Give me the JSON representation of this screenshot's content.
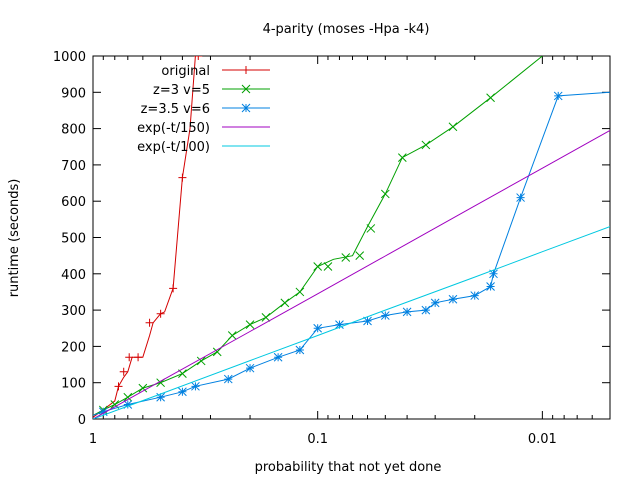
{
  "chart_data": {
    "type": "line",
    "title": "4-parity (moses -Hpa -k4)",
    "xlabel": "probability that not yet done",
    "ylabel": "runtime (seconds)",
    "x_scale": "log",
    "x_reversed": true,
    "xlim": [
      1,
      0.005
    ],
    "ylim": [
      0,
      1000
    ],
    "x_ticks": [
      {
        "value": 1,
        "label": "1"
      },
      {
        "value": 0.1,
        "label": "0.1"
      },
      {
        "value": 0.01,
        "label": "0.01"
      }
    ],
    "y_ticks": [
      0,
      100,
      200,
      300,
      400,
      500,
      600,
      700,
      800,
      900,
      1000
    ],
    "grid": false,
    "legend_position": "top-left",
    "series": [
      {
        "name": "original",
        "color": "#d40000",
        "marker": "plus",
        "points": [
          [
            1,
            5
          ],
          [
            0.95,
            15
          ],
          [
            0.88,
            30
          ],
          [
            0.8,
            50
          ],
          [
            0.77,
            90
          ],
          [
            0.73,
            115
          ],
          [
            0.7,
            130
          ],
          [
            0.67,
            170
          ],
          [
            0.6,
            170
          ],
          [
            0.56,
            230
          ],
          [
            0.54,
            265
          ],
          [
            0.5,
            290
          ],
          [
            0.48,
            295
          ],
          [
            0.44,
            360
          ],
          [
            0.4,
            665
          ],
          [
            0.37,
            800
          ],
          [
            0.35,
            1000
          ]
        ],
        "marked_points": [
          [
            0.77,
            90
          ],
          [
            0.73,
            130
          ],
          [
            0.69,
            170
          ],
          [
            0.63,
            170
          ],
          [
            0.56,
            265
          ],
          [
            0.5,
            290
          ],
          [
            0.44,
            360
          ],
          [
            0.4,
            665
          ],
          [
            0.34,
            1000
          ]
        ]
      },
      {
        "name": "z=3 v=5",
        "color": "#00a000",
        "marker": "x",
        "points": [
          [
            1,
            10
          ],
          [
            0.9,
            25
          ],
          [
            0.8,
            40
          ],
          [
            0.7,
            60
          ],
          [
            0.6,
            85
          ],
          [
            0.5,
            100
          ],
          [
            0.4,
            125
          ],
          [
            0.33,
            160
          ],
          [
            0.28,
            185
          ],
          [
            0.24,
            230
          ],
          [
            0.2,
            260
          ],
          [
            0.17,
            280
          ],
          [
            0.14,
            320
          ],
          [
            0.12,
            350
          ],
          [
            0.1,
            420
          ],
          [
            0.085,
            440
          ],
          [
            0.07,
            450
          ],
          [
            0.06,
            530
          ],
          [
            0.05,
            620
          ],
          [
            0.042,
            720
          ],
          [
            0.033,
            755
          ],
          [
            0.025,
            805
          ],
          [
            0.017,
            885
          ],
          [
            0.01,
            1000
          ]
        ],
        "marked_points": [
          [
            0.9,
            25
          ],
          [
            0.8,
            40
          ],
          [
            0.7,
            60
          ],
          [
            0.6,
            85
          ],
          [
            0.5,
            100
          ],
          [
            0.4,
            125
          ],
          [
            0.33,
            160
          ],
          [
            0.28,
            185
          ],
          [
            0.24,
            230
          ],
          [
            0.2,
            260
          ],
          [
            0.17,
            280
          ],
          [
            0.14,
            320
          ],
          [
            0.12,
            350
          ],
          [
            0.1,
            420
          ],
          [
            0.09,
            420
          ],
          [
            0.075,
            445
          ],
          [
            0.065,
            450
          ],
          [
            0.058,
            525
          ],
          [
            0.05,
            620
          ],
          [
            0.042,
            720
          ],
          [
            0.033,
            755
          ],
          [
            0.025,
            805
          ],
          [
            0.017,
            885
          ]
        ]
      },
      {
        "name": "z=3.5 v=6",
        "color": "#0080e0",
        "marker": "star",
        "points": [
          [
            1,
            10
          ],
          [
            0.9,
            20
          ],
          [
            0.7,
            40
          ],
          [
            0.5,
            60
          ],
          [
            0.4,
            75
          ],
          [
            0.35,
            90
          ],
          [
            0.25,
            110
          ],
          [
            0.2,
            140
          ],
          [
            0.15,
            170
          ],
          [
            0.12,
            190
          ],
          [
            0.1,
            250
          ],
          [
            0.08,
            260
          ],
          [
            0.06,
            270
          ],
          [
            0.05,
            285
          ],
          [
            0.04,
            295
          ],
          [
            0.033,
            300
          ],
          [
            0.03,
            320
          ],
          [
            0.025,
            330
          ],
          [
            0.02,
            340
          ],
          [
            0.017,
            365
          ],
          [
            0.0165,
            400
          ],
          [
            0.0125,
            610
          ],
          [
            0.0085,
            890
          ],
          [
            0.005,
            900
          ]
        ],
        "marked_points": [
          [
            0.9,
            20
          ],
          [
            0.7,
            40
          ],
          [
            0.5,
            60
          ],
          [
            0.4,
            75
          ],
          [
            0.35,
            90
          ],
          [
            0.25,
            110
          ],
          [
            0.2,
            140
          ],
          [
            0.15,
            170
          ],
          [
            0.12,
            190
          ],
          [
            0.1,
            250
          ],
          [
            0.08,
            260
          ],
          [
            0.06,
            270
          ],
          [
            0.05,
            285
          ],
          [
            0.04,
            295
          ],
          [
            0.033,
            300
          ],
          [
            0.03,
            320
          ],
          [
            0.025,
            330
          ],
          [
            0.02,
            340
          ],
          [
            0.017,
            365
          ],
          [
            0.0165,
            400
          ],
          [
            0.0125,
            610
          ],
          [
            0.0085,
            890
          ]
        ]
      },
      {
        "name": "exp(-t/150)",
        "color": "#a000c0",
        "marker": "none",
        "points": [
          [
            1,
            0
          ],
          [
            0.5,
            104
          ],
          [
            0.2,
            241
          ],
          [
            0.1,
            345
          ],
          [
            0.05,
            449
          ],
          [
            0.02,
            587
          ],
          [
            0.01,
            691
          ],
          [
            0.005,
            795
          ]
        ]
      },
      {
        "name": "exp(-t/100)",
        "color": "#00c8e0",
        "marker": "none",
        "points": [
          [
            1,
            0
          ],
          [
            0.5,
            69
          ],
          [
            0.2,
            161
          ],
          [
            0.1,
            230
          ],
          [
            0.05,
            300
          ],
          [
            0.02,
            391
          ],
          [
            0.01,
            461
          ],
          [
            0.005,
            530
          ]
        ]
      }
    ]
  }
}
